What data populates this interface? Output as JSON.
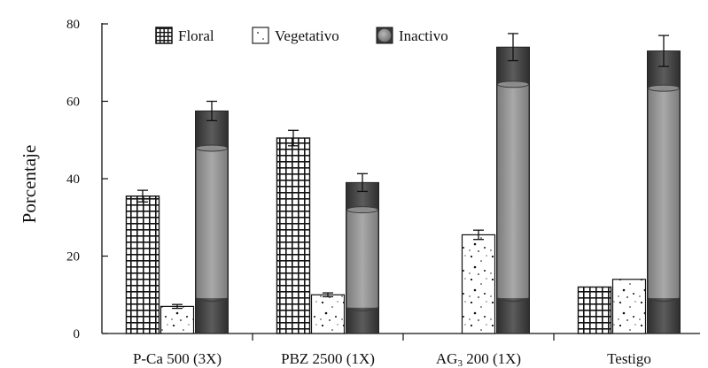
{
  "chart_data": {
    "type": "bar",
    "title": "",
    "xlabel": "",
    "ylabel": "Porcentaje",
    "ylim": [
      0,
      80
    ],
    "yticks": [
      0,
      20,
      40,
      60,
      80
    ],
    "categories": [
      "P-Ca 500 (3X)",
      "PBZ 2500 (1X)",
      "AG3 200 (1X)",
      "Testigo"
    ],
    "category_labels": [
      {
        "main": "P-Ca 500 (3X)",
        "sub": "",
        "rest": ""
      },
      {
        "main": "PBZ 2500 (1X)",
        "sub": "",
        "rest": ""
      },
      {
        "main": "AG",
        "sub": "3",
        "rest": " 200 (1X)"
      },
      {
        "main": "Testigo",
        "sub": "",
        "rest": ""
      }
    ],
    "legend_position": "top",
    "series": [
      {
        "name": "Floral",
        "pattern": "grid",
        "values": [
          35.5,
          50.5,
          0,
          12.0
        ],
        "errors": [
          1.5,
          2.0,
          0,
          0
        ]
      },
      {
        "name": "Vegetativo",
        "pattern": "dots",
        "values": [
          7.0,
          10.0,
          25.5,
          14.0
        ],
        "errors": [
          0.5,
          0.5,
          1.2,
          0
        ]
      },
      {
        "name": "Inactivo",
        "pattern": "cylinder",
        "values": [
          57.5,
          39.0,
          74.0,
          73.0
        ],
        "errors": [
          2.5,
          2.3,
          3.5,
          4.0
        ]
      }
    ],
    "colors": {
      "dark": "#4b4b4b",
      "light": "#9a9a9a",
      "ink": "#111111"
    }
  }
}
